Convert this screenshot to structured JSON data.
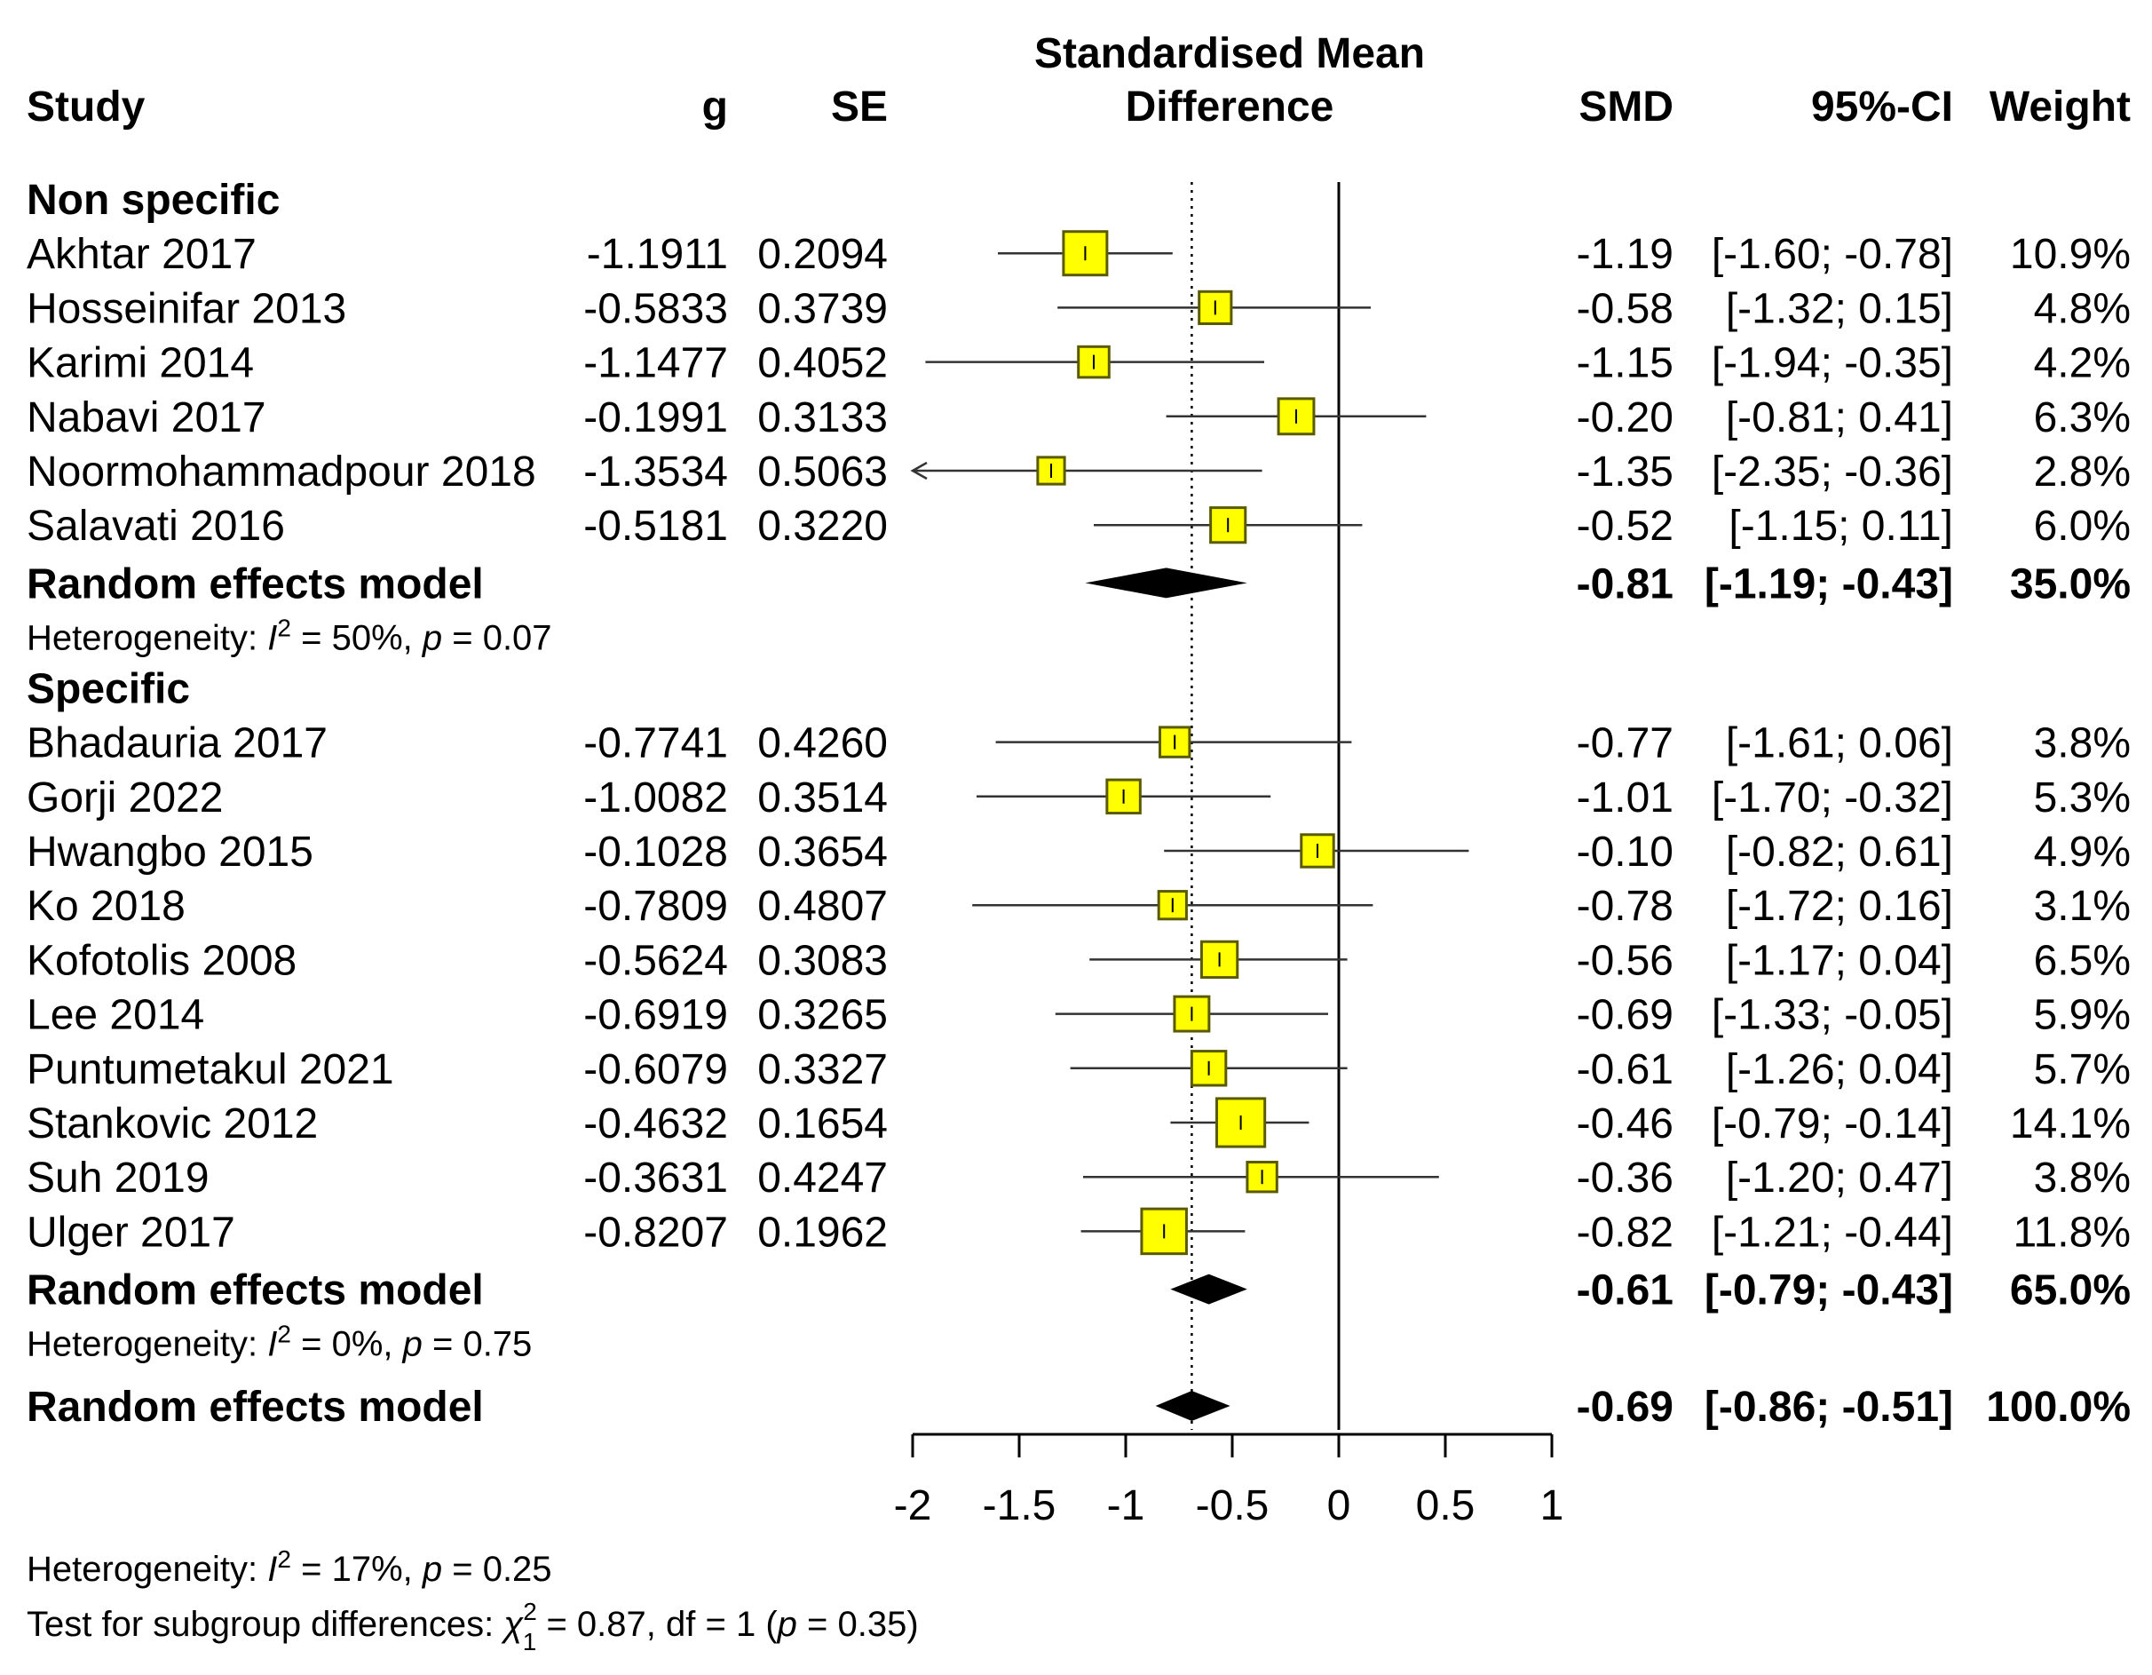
{
  "chart_data": {
    "type": "forest",
    "title": "Standardised Mean Difference",
    "headers": {
      "study": "Study",
      "g": "g",
      "se": "SE",
      "plot_line1": "Standardised Mean",
      "plot_line2": "Difference",
      "smd": "SMD",
      "ci": "95%-CI",
      "weight": "Weight"
    },
    "x_ticks": [
      "-2",
      "-1.5",
      "-1",
      "-0.5",
      "0",
      "0.5",
      "1"
    ],
    "x_tick_values": [
      -2,
      -1.5,
      -1,
      -0.5,
      0,
      0.5,
      1
    ],
    "xlim": [
      -2,
      1
    ],
    "reference_line": 0,
    "overall_line": -0.69,
    "groups": [
      {
        "name": "Non specific",
        "studies": [
          {
            "study": "Akhtar 2017",
            "g": "-1.1911",
            "se": "0.2094",
            "smd": "-1.19",
            "ci": "[-1.60; -0.78]",
            "weight": "10.9%",
            "est": -1.19,
            "lo": -1.6,
            "hi": -0.78,
            "w": 10.9
          },
          {
            "study": "Hosseinifar 2013",
            "g": "-0.5833",
            "se": "0.3739",
            "smd": "-0.58",
            "ci": "[-1.32; 0.15]",
            "weight": "4.8%",
            "est": -0.58,
            "lo": -1.32,
            "hi": 0.15,
            "w": 4.8
          },
          {
            "study": "Karimi 2014",
            "g": "-1.1477",
            "se": "0.4052",
            "smd": "-1.15",
            "ci": "[-1.94; -0.35]",
            "weight": "4.2%",
            "est": -1.15,
            "lo": -1.94,
            "hi": -0.35,
            "w": 4.2
          },
          {
            "study": "Nabavi 2017",
            "g": "-0.1991",
            "se": "0.3133",
            "smd": "-0.20",
            "ci": "[-0.81; 0.41]",
            "weight": "6.3%",
            "est": -0.2,
            "lo": -0.81,
            "hi": 0.41,
            "w": 6.3
          },
          {
            "study": "Noormohammadpour 2018",
            "g": "-1.3534",
            "se": "0.5063",
            "smd": "-1.35",
            "ci": "[-2.35; -0.36]",
            "weight": "2.8%",
            "est": -1.35,
            "lo": -2.35,
            "hi": -0.36,
            "w": 2.8
          },
          {
            "study": "Salavati 2016",
            "g": "-0.5181",
            "se": "0.3220",
            "smd": "-0.52",
            "ci": "[-1.15; 0.11]",
            "weight": "6.0%",
            "est": -0.52,
            "lo": -1.15,
            "hi": 0.11,
            "w": 6.0
          }
        ],
        "summary": {
          "label": "Random effects model",
          "smd": "-0.81",
          "ci": "[-1.19; -0.43]",
          "weight": "35.0%",
          "est": -0.81,
          "lo": -1.19,
          "hi": -0.43
        },
        "heterogeneity": {
          "prefix": "Heterogeneity: ",
          "i": "I",
          "sup": "2",
          "mid": " = 50%, ",
          "p": "p",
          "rest": " = 0.07"
        }
      },
      {
        "name": "Specific",
        "studies": [
          {
            "study": "Bhadauria 2017",
            "g": "-0.7741",
            "se": "0.4260",
            "smd": "-0.77",
            "ci": "[-1.61; 0.06]",
            "weight": "3.8%",
            "est": -0.77,
            "lo": -1.61,
            "hi": 0.06,
            "w": 3.8
          },
          {
            "study": "Gorji 2022",
            "g": "-1.0082",
            "se": "0.3514",
            "smd": "-1.01",
            "ci": "[-1.70; -0.32]",
            "weight": "5.3%",
            "est": -1.01,
            "lo": -1.7,
            "hi": -0.32,
            "w": 5.3
          },
          {
            "study": "Hwangbo 2015",
            "g": "-0.1028",
            "se": "0.3654",
            "smd": "-0.10",
            "ci": "[-0.82; 0.61]",
            "weight": "4.9%",
            "est": -0.1,
            "lo": -0.82,
            "hi": 0.61,
            "w": 4.9
          },
          {
            "study": "Ko 2018",
            "g": "-0.7809",
            "se": "0.4807",
            "smd": "-0.78",
            "ci": "[-1.72; 0.16]",
            "weight": "3.1%",
            "est": -0.78,
            "lo": -1.72,
            "hi": 0.16,
            "w": 3.1
          },
          {
            "study": "Kofotolis 2008",
            "g": "-0.5624",
            "se": "0.3083",
            "smd": "-0.56",
            "ci": "[-1.17; 0.04]",
            "weight": "6.5%",
            "est": -0.56,
            "lo": -1.17,
            "hi": 0.04,
            "w": 6.5
          },
          {
            "study": "Lee 2014",
            "g": "-0.6919",
            "se": "0.3265",
            "smd": "-0.69",
            "ci": "[-1.33; -0.05]",
            "weight": "5.9%",
            "est": -0.69,
            "lo": -1.33,
            "hi": -0.05,
            "w": 5.9
          },
          {
            "study": "Puntumetakul 2021",
            "g": "-0.6079",
            "se": "0.3327",
            "smd": "-0.61",
            "ci": "[-1.26; 0.04]",
            "weight": "5.7%",
            "est": -0.61,
            "lo": -1.26,
            "hi": 0.04,
            "w": 5.7
          },
          {
            "study": "Stankovic 2012",
            "g": "-0.4632",
            "se": "0.1654",
            "smd": "-0.46",
            "ci": "[-0.79; -0.14]",
            "weight": "14.1%",
            "est": -0.46,
            "lo": -0.79,
            "hi": -0.14,
            "w": 14.1
          },
          {
            "study": "Suh 2019",
            "g": "-0.3631",
            "se": "0.4247",
            "smd": "-0.36",
            "ci": "[-1.20; 0.47]",
            "weight": "3.8%",
            "est": -0.36,
            "lo": -1.2,
            "hi": 0.47,
            "w": 3.8
          },
          {
            "study": "Ulger 2017",
            "g": "-0.8207",
            "se": "0.1962",
            "smd": "-0.82",
            "ci": "[-1.21; -0.44]",
            "weight": "11.8%",
            "est": -0.82,
            "lo": -1.21,
            "hi": -0.44,
            "w": 11.8
          }
        ],
        "summary": {
          "label": "Random effects model",
          "smd": "-0.61",
          "ci": "[-0.79; -0.43]",
          "weight": "65.0%",
          "est": -0.61,
          "lo": -0.79,
          "hi": -0.43
        },
        "heterogeneity": {
          "prefix": "Heterogeneity: ",
          "i": "I",
          "sup": "2",
          "mid": " = 0%, ",
          "p": "p",
          "rest": " = 0.75"
        }
      }
    ],
    "overall": {
      "label": "Random effects model",
      "smd": "-0.69",
      "ci": "[-0.86; -0.51]",
      "weight": "100.0%",
      "est": -0.69,
      "lo": -0.86,
      "hi": -0.51
    },
    "overall_heterogeneity": {
      "prefix": "Heterogeneity: ",
      "i": "I",
      "sup": "2",
      "mid": " = 17%, ",
      "p": "p",
      "rest": " = 0.25"
    },
    "subgroup_test": {
      "prefix": "Test for subgroup differences: ",
      "chi": "χ",
      "sup": "2",
      "sub": "1",
      "mid": " = 0.87, df = 1 (",
      "p": "p",
      "rest": " = 0.35)"
    },
    "colors": {
      "box_fill": "#FFFF00",
      "box_stroke": "#5A5A00",
      "ci_line": "#333333",
      "diamond": "#000000",
      "reference": "#000000"
    }
  }
}
